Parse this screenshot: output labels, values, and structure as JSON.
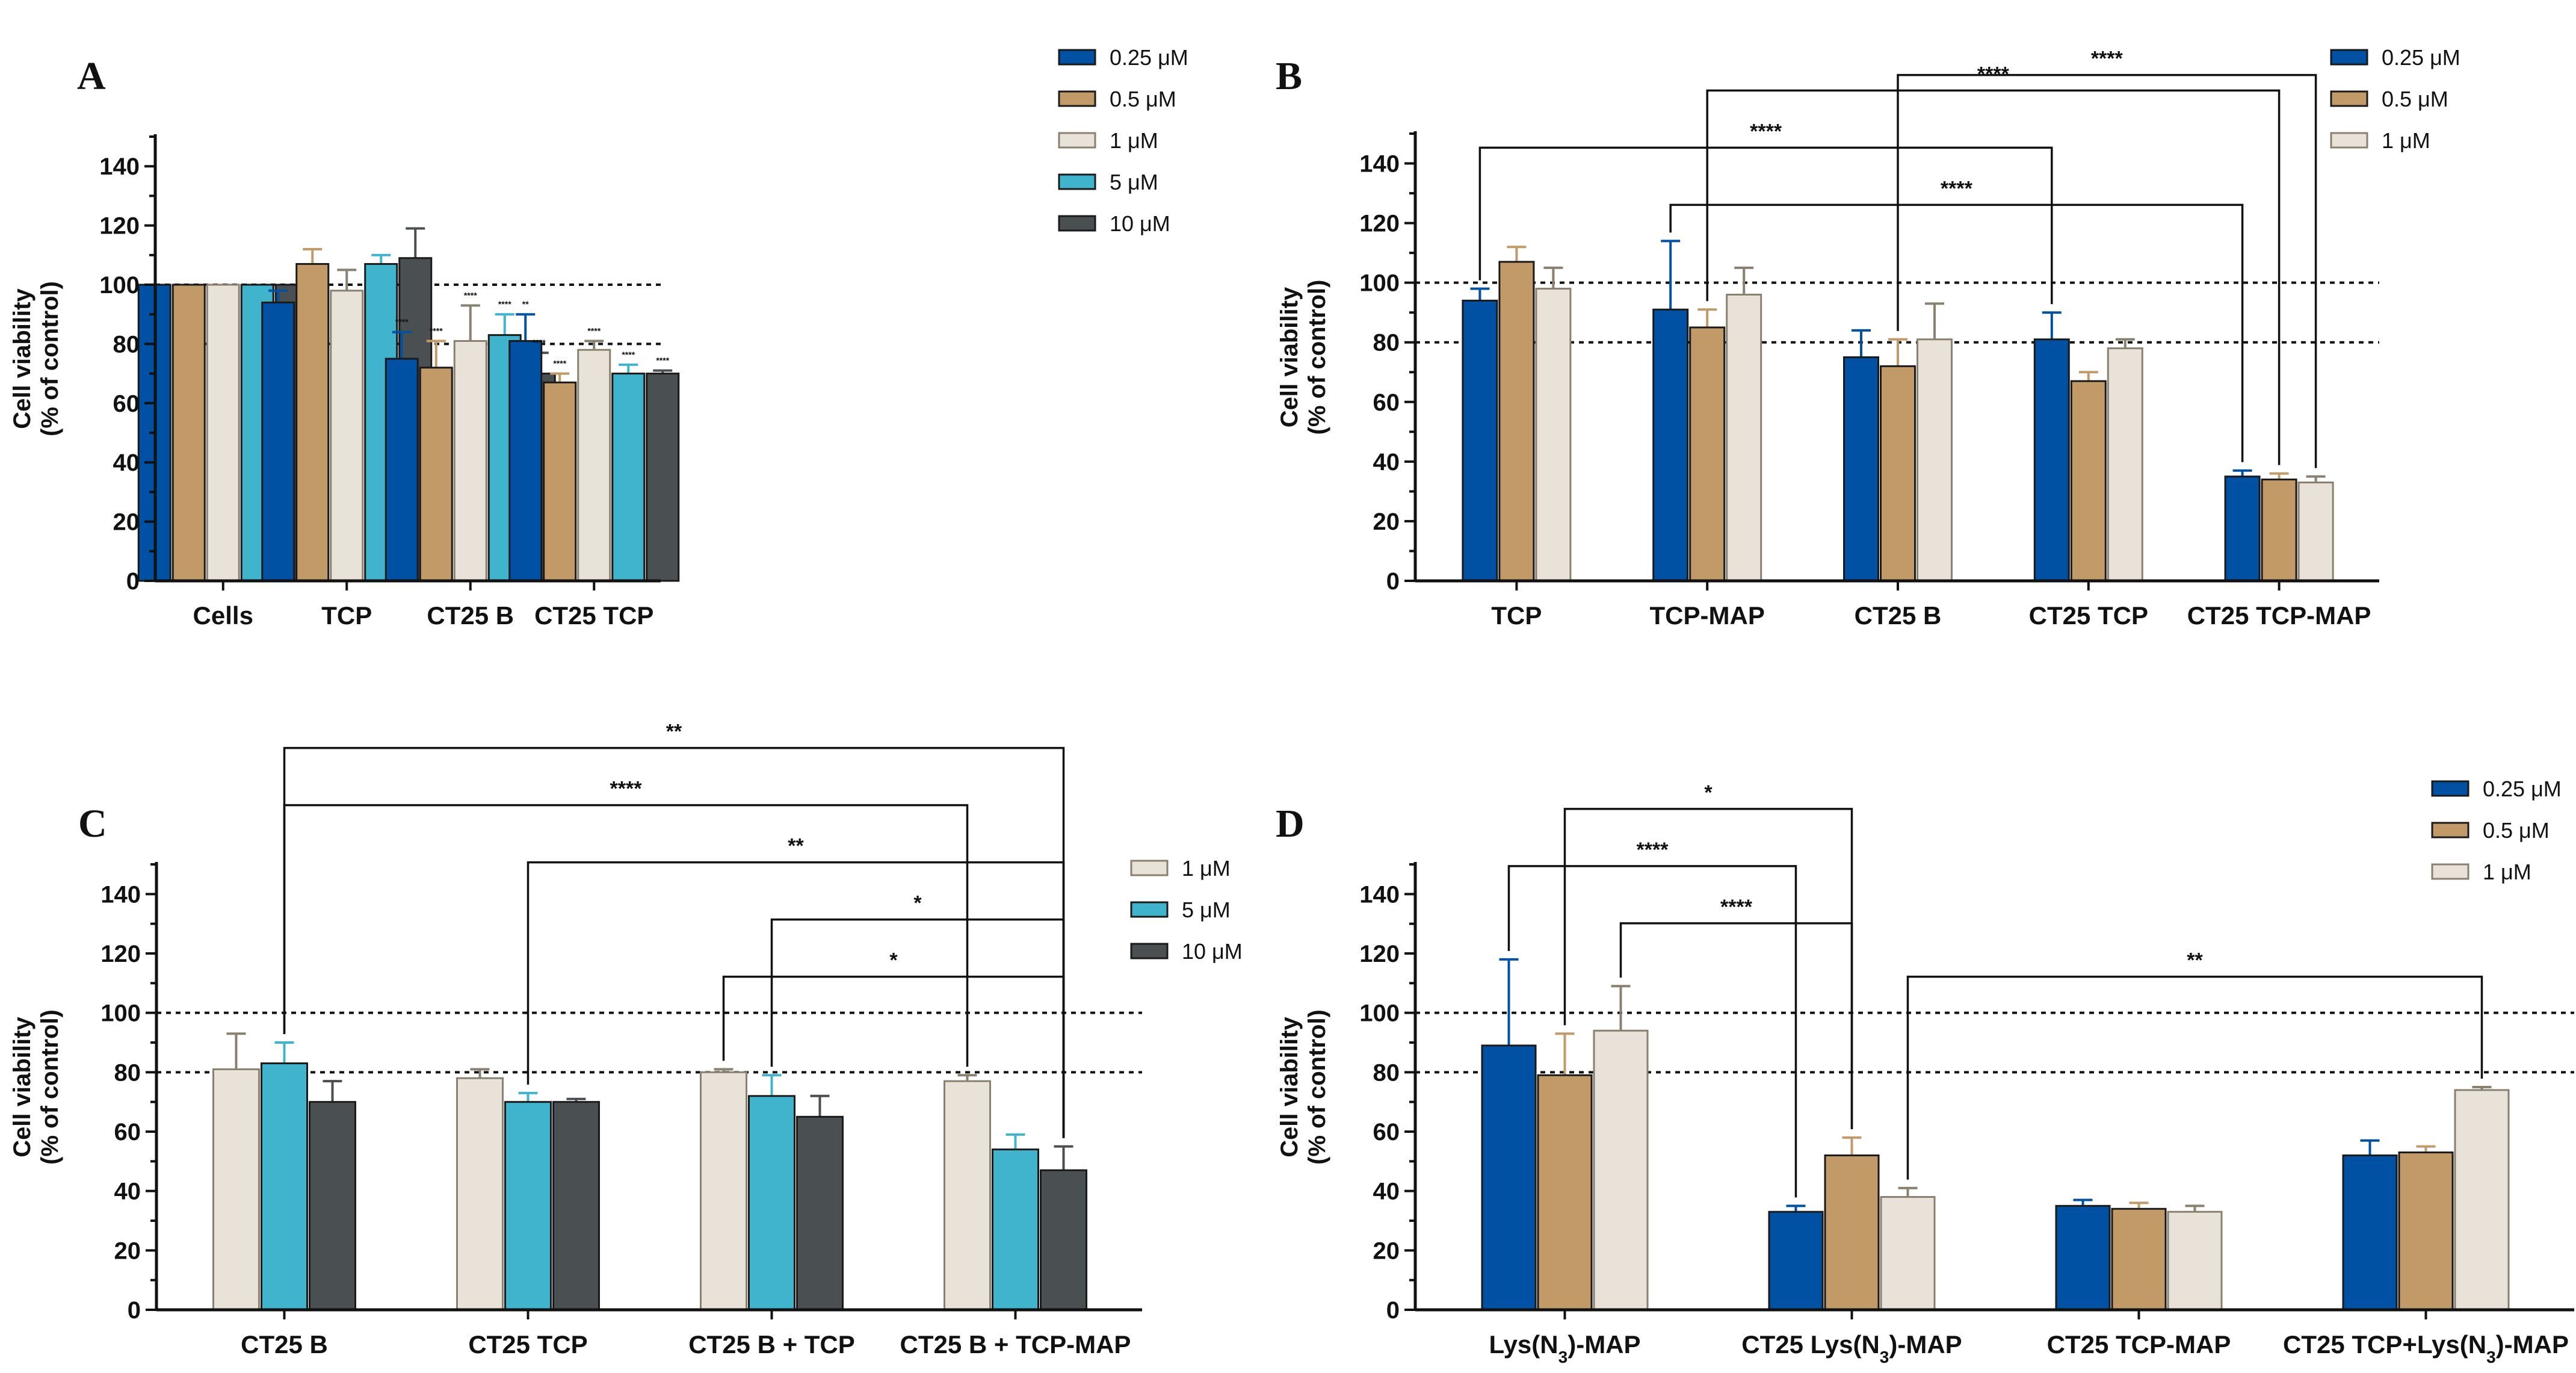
{
  "chart_data": [
    {
      "panel": "A",
      "type": "bar",
      "title": "",
      "xlabel": "",
      "ylabel": [
        "Cell viability",
        "(% of control)"
      ],
      "ylim": [
        0,
        150
      ],
      "yticks": [
        0,
        20,
        40,
        60,
        80,
        100,
        120,
        140
      ],
      "reference_lines": [
        100,
        80
      ],
      "legend_position": "top-right",
      "categories": [
        "Cells",
        "TCP",
        "CT25 B",
        "CT25 TCP"
      ],
      "series": [
        {
          "name": "0.25 μM",
          "color": "#0050a4",
          "values": [
            100,
            94,
            75,
            81
          ],
          "errors": [
            0,
            4,
            9,
            9
          ]
        },
        {
          "name": "0.5 μM",
          "color": "#c19a68",
          "values": [
            100,
            107,
            72,
            67
          ],
          "errors": [
            0,
            5,
            9,
            3
          ]
        },
        {
          "name": "1 μM",
          "color": "#e9e2d8",
          "values": [
            100,
            98,
            81,
            78
          ],
          "errors": [
            0,
            7,
            12,
            3
          ]
        },
        {
          "name": "5 μM",
          "color": "#40b4cc",
          "values": [
            100,
            107,
            83,
            70
          ],
          "errors": [
            0,
            3,
            7,
            3
          ]
        },
        {
          "name": "10 μM",
          "color": "#4a5052",
          "values": [
            100,
            109,
            70,
            70
          ],
          "errors": [
            0,
            10,
            7,
            1
          ]
        }
      ],
      "bar_annotations": [
        {
          "category": 2,
          "series": 0,
          "text": "****"
        },
        {
          "category": 2,
          "series": 1,
          "text": "****"
        },
        {
          "category": 2,
          "series": 2,
          "text": "****"
        },
        {
          "category": 2,
          "series": 3,
          "text": "****"
        },
        {
          "category": 2,
          "series": 4,
          "text": "****"
        },
        {
          "category": 3,
          "series": 0,
          "text": "**"
        },
        {
          "category": 3,
          "series": 1,
          "text": "****"
        },
        {
          "category": 3,
          "series": 2,
          "text": "****"
        },
        {
          "category": 3,
          "series": 3,
          "text": "****"
        },
        {
          "category": 3,
          "series": 4,
          "text": "****"
        }
      ],
      "comparisons": []
    },
    {
      "panel": "B",
      "type": "bar",
      "title": "",
      "xlabel": "",
      "ylabel": [
        "Cell viability",
        "(% of control)"
      ],
      "ylim": [
        0,
        150
      ],
      "yticks": [
        0,
        20,
        40,
        60,
        80,
        100,
        120,
        140
      ],
      "reference_lines": [
        100,
        80
      ],
      "legend_position": "top-right",
      "categories": [
        "TCP",
        "TCP-MAP",
        "CT25 B",
        "CT25 TCP",
        "CT25 TCP-MAP"
      ],
      "series": [
        {
          "name": "0.25 μM",
          "color": "#0050a4",
          "values": [
            94,
            91,
            75,
            81,
            35
          ],
          "errors": [
            4,
            23,
            9,
            9,
            2
          ]
        },
        {
          "name": "0.5 μM",
          "color": "#c19a68",
          "values": [
            107,
            85,
            72,
            67,
            34
          ],
          "errors": [
            5,
            6,
            9,
            3,
            2
          ]
        },
        {
          "name": "1 μM",
          "color": "#e9e2d8",
          "values": [
            98,
            96,
            81,
            78,
            33
          ],
          "errors": [
            7,
            9,
            12,
            3,
            2
          ]
        }
      ],
      "bar_annotations": [],
      "comparisons": [
        {
          "from": [
            0,
            0
          ],
          "to": [
            3,
            0
          ],
          "level": 1,
          "text": "****"
        },
        {
          "from": [
            1,
            0
          ],
          "to": [
            4,
            0
          ],
          "level": 0,
          "text": "****"
        },
        {
          "from": [
            1,
            1
          ],
          "to": [
            4,
            1
          ],
          "level": 2,
          "text": "****"
        },
        {
          "from": [
            2,
            1
          ],
          "to": [
            4,
            2
          ],
          "level": 3,
          "text": "****"
        }
      ]
    },
    {
      "panel": "C",
      "type": "bar",
      "title": "",
      "xlabel": "",
      "ylabel": [
        "Cell viability",
        "(% of control)"
      ],
      "ylim": [
        0,
        150
      ],
      "yticks": [
        0,
        20,
        40,
        60,
        80,
        100,
        120,
        140
      ],
      "reference_lines": [
        100,
        80
      ],
      "legend_position": "top-right",
      "categories": [
        "CT25 B",
        "CT25 TCP",
        "CT25 B + TCP",
        "CT25 B + TCP-MAP"
      ],
      "series": [
        {
          "name": "1 μM",
          "color": "#e9e2d8",
          "values": [
            81,
            78,
            80,
            77
          ],
          "errors": [
            12,
            3,
            1,
            2
          ]
        },
        {
          "name": "5 μM",
          "color": "#40b4cc",
          "values": [
            83,
            70,
            72,
            54
          ],
          "errors": [
            7,
            3,
            7,
            5
          ]
        },
        {
          "name": "10 μM",
          "color": "#4a5052",
          "values": [
            70,
            70,
            65,
            47
          ],
          "errors": [
            7,
            1,
            7,
            8
          ]
        }
      ],
      "bar_annotations": [],
      "comparisons": [
        {
          "from": [
            2,
            0
          ],
          "to": [
            3,
            2
          ],
          "level": 0,
          "text": "*"
        },
        {
          "from": [
            2,
            1
          ],
          "to": [
            3,
            2
          ],
          "level": 1,
          "text": "*"
        },
        {
          "from": [
            1,
            1
          ],
          "to": [
            3,
            2
          ],
          "level": 2,
          "text": "**"
        },
        {
          "from": [
            0,
            1
          ],
          "to": [
            3,
            0
          ],
          "level": 3,
          "text": "****"
        },
        {
          "from": [
            0,
            1
          ],
          "to": [
            3,
            2
          ],
          "level": 4,
          "text": "**"
        }
      ]
    },
    {
      "panel": "D",
      "type": "bar",
      "title": "",
      "xlabel": "",
      "ylabel": [
        "Cell viability",
        "(% of control)"
      ],
      "ylim": [
        0,
        150
      ],
      "yticks": [
        0,
        20,
        40,
        60,
        80,
        100,
        120,
        140
      ],
      "reference_lines": [
        100,
        80
      ],
      "legend_position": "top-right",
      "categories": [
        "Lys(N3)-MAP",
        "CT25 Lys(N3)-MAP",
        "CT25 TCP-MAP",
        "CT25 TCP+Lys(N3)-MAP"
      ],
      "series": [
        {
          "name": "0.25 μM",
          "color": "#0050a4",
          "values": [
            89,
            33,
            35,
            52
          ],
          "errors": [
            29,
            2,
            2,
            5
          ]
        },
        {
          "name": "0.5 μM",
          "color": "#c19a68",
          "values": [
            79,
            52,
            34,
            53
          ],
          "errors": [
            14,
            6,
            2,
            2
          ]
        },
        {
          "name": "1 μM",
          "color": "#e9e2d8",
          "values": [
            94,
            38,
            33,
            74
          ],
          "errors": [
            15,
            3,
            2,
            1
          ]
        }
      ],
      "bar_annotations": [],
      "comparisons": [
        {
          "from": [
            1,
            2
          ],
          "to": [
            3,
            2
          ],
          "level": 0,
          "text": "**"
        },
        {
          "from": [
            0,
            2
          ],
          "to": [
            1,
            1
          ],
          "level": 0,
          "text": "****"
        },
        {
          "from": [
            0,
            0
          ],
          "to": [
            1,
            0
          ],
          "level": 1,
          "text": "****"
        },
        {
          "from": [
            0,
            1
          ],
          "to": [
            1,
            1
          ],
          "level": 2,
          "text": "*"
        }
      ]
    }
  ]
}
